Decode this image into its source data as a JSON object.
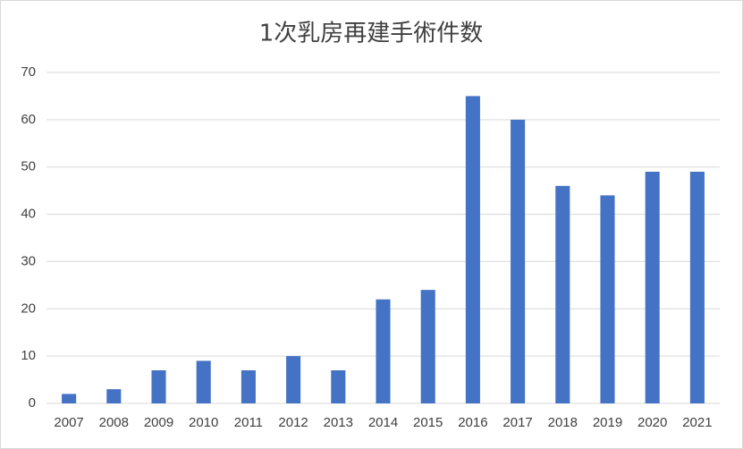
{
  "chart_data": {
    "type": "bar",
    "title": "1次乳房再建手術件数",
    "categories": [
      "2007",
      "2008",
      "2009",
      "2010",
      "2011",
      "2012",
      "2013",
      "2014",
      "2015",
      "2016",
      "2017",
      "2018",
      "2019",
      "2020",
      "2021"
    ],
    "values": [
      2,
      3,
      7,
      9,
      7,
      10,
      7,
      22,
      24,
      65,
      60,
      46,
      44,
      49,
      49
    ],
    "color": "#4472c4",
    "ylim": [
      0,
      70
    ],
    "yticks": [
      0,
      10,
      20,
      30,
      40,
      50,
      60,
      70
    ],
    "grid": true
  }
}
